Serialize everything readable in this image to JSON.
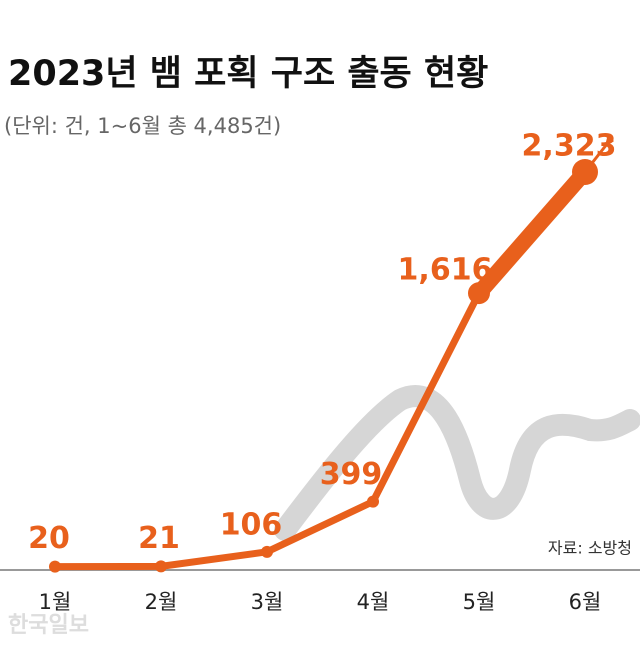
{
  "chart_data": {
    "type": "line",
    "title": "2023년 뱀 포획 구조 출동 현황",
    "subtitle": "(단위: 건, 1~6월 총 4,485건)",
    "categories": [
      "1월",
      "2월",
      "3월",
      "4월",
      "5월",
      "6월"
    ],
    "values": [
      20,
      21,
      106,
      399,
      1616,
      2323
    ],
    "value_labels": [
      "20",
      "21",
      "106",
      "399",
      "1,616",
      "2,323"
    ],
    "color": "#e8601c",
    "source": "자료: 소방청",
    "watermark": "한국일보"
  }
}
